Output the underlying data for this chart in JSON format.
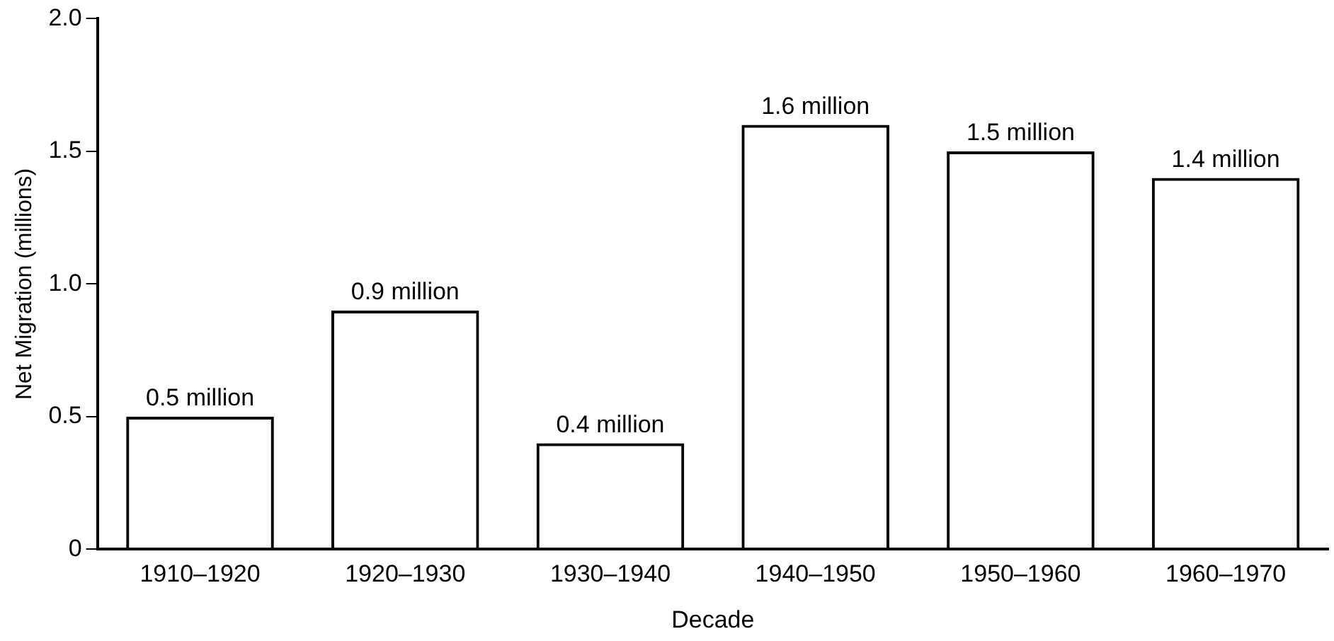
{
  "chart_data": {
    "type": "bar",
    "xlabel": "Decade",
    "ylabel": "Net Migration (millions)",
    "categories": [
      "1910–1920",
      "1920–1930",
      "1930–1940",
      "1940–1950",
      "1950–1960",
      "1960–1970"
    ],
    "values": [
      0.5,
      0.9,
      0.4,
      1.6,
      1.5,
      1.4
    ],
    "value_labels": [
      "0.5 million",
      "0.9 million",
      "0.4 million",
      "1.6 million",
      "1.5 million",
      "1.4 million"
    ],
    "color": "#000000",
    "ylim": [
      0,
      2
    ],
    "yticks": [
      0,
      0.5,
      {
        "value": 1,
        "label": "1.0"
      },
      1.5,
      {
        "value": 2,
        "label": "2.0"
      }
    ],
    "grid": false
  }
}
